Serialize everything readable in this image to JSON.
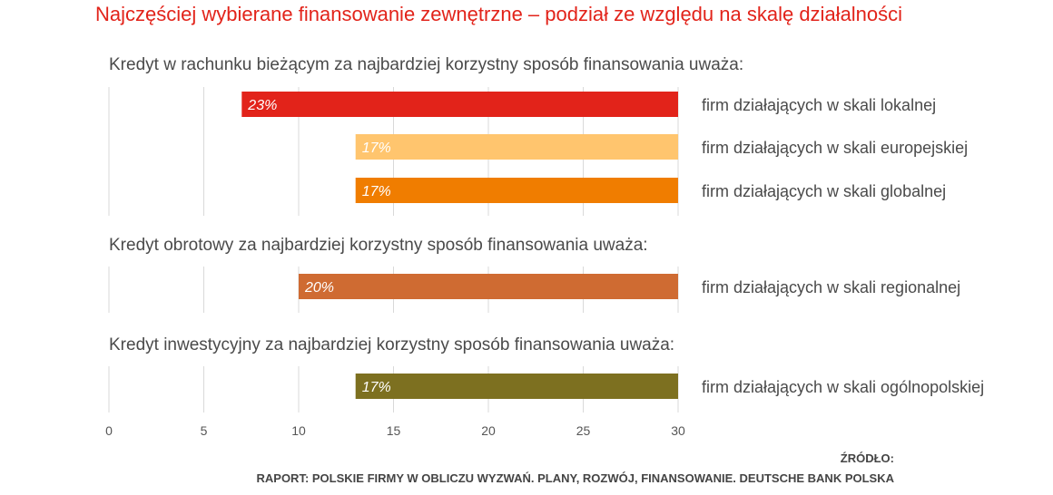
{
  "title": "Najczęściej wybierane finansowanie zewnętrzne – podział ze względu na skalę działalności",
  "source_heading": "ŹRÓDŁO:",
  "source_text": "RAPORT: POLSKIE FIRMY W OBLICZU WYZWAŃ. PLANY, ROZWÓJ, FINANSOWANIE. DEUTSCHE BANK POLSKA",
  "chart_data": {
    "type": "bar",
    "orientation": "horizontal",
    "xlim": [
      0,
      30
    ],
    "xticks": [
      0,
      5,
      10,
      15,
      20,
      25,
      30
    ],
    "grid": true,
    "bar_direction": "right-aligned to 30, extending left by value",
    "groups": [
      {
        "label": "Kredyt w rachunku bieżącym za najbardziej korzystny sposób finansowania uważa:",
        "bars": [
          {
            "label": "firm działających w skali lokalnej",
            "value": 23,
            "value_label": "23%",
            "color": "#e2231a"
          },
          {
            "label": "firm działających w skali europejskiej",
            "value": 17,
            "value_label": "17%",
            "color": "#ffc56e"
          },
          {
            "label": "firm działających w skali globalnej",
            "value": 17,
            "value_label": "17%",
            "color": "#f07d00"
          }
        ]
      },
      {
        "label": "Kredyt obrotowy za najbardziej korzystny sposób finansowania uważa:",
        "bars": [
          {
            "label": "firm działających w skali regionalnej",
            "value": 20,
            "value_label": "20%",
            "color": "#cf6b32"
          }
        ]
      },
      {
        "label": "Kredyt inwestycyjny za najbardziej korzystny sposób finansowania uważa:",
        "bars": [
          {
            "label": "firm działających w skali ogólnopolskiej",
            "value": 17,
            "value_label": "17%",
            "color": "#7d7020"
          }
        ]
      }
    ]
  }
}
